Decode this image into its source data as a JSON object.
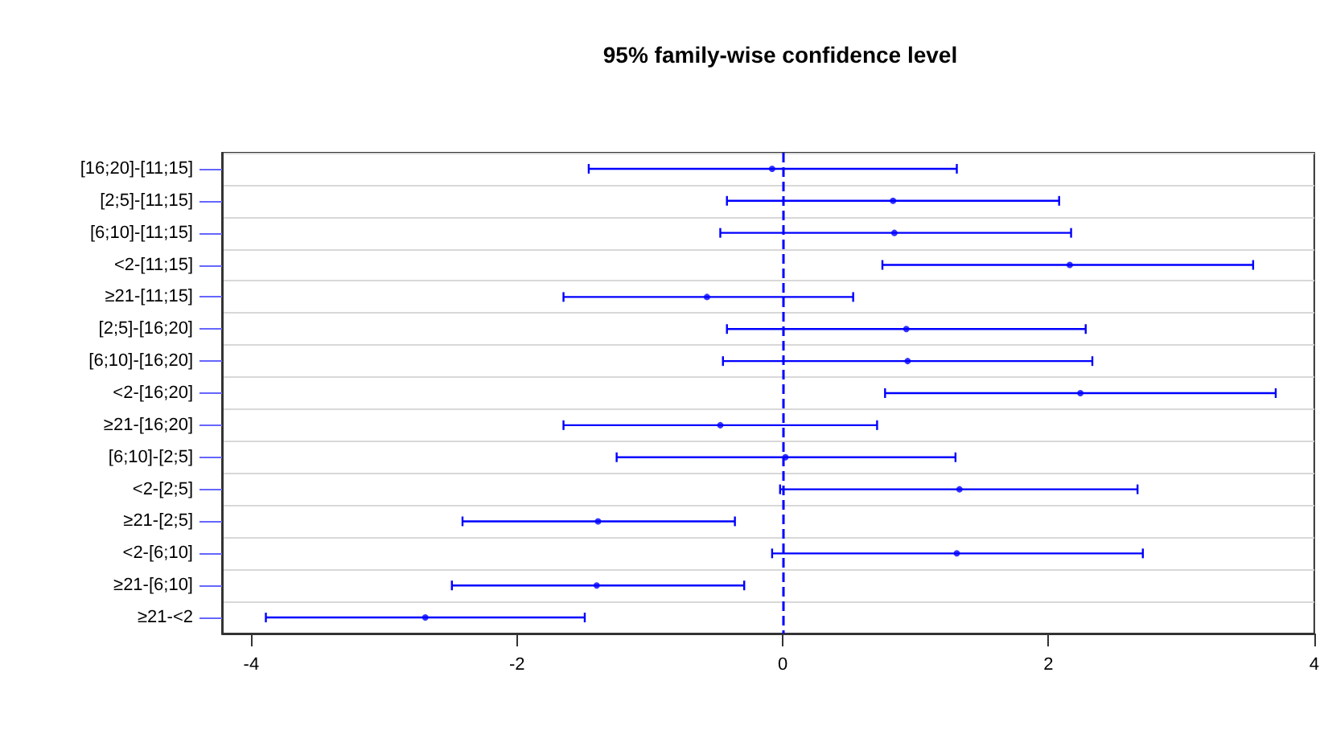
{
  "chart_data": {
    "type": "scatter",
    "title": "95% family-wise confidence level",
    "orientation": "horizontal",
    "categories": [
      "[16;20]-[11;15]",
      "[2;5]-[11;15]",
      "[6;10]-[11;15]",
      "<2-[11;15]",
      "≥21-[11;15]",
      "[2;5]-[16;20]",
      "[6;10]-[16;20]",
      "<2-[16;20]",
      "≥21-[16;20]",
      "[6;10]-[2;5]",
      "<2-[2;5]",
      "≥21-[2;5]",
      "<2-[6;10]",
      "≥21-[6;10]",
      "≥21-<2"
    ],
    "values": [
      -0.08,
      0.83,
      0.84,
      2.16,
      -0.57,
      0.93,
      0.94,
      2.24,
      -0.47,
      0.02,
      1.33,
      -1.39,
      1.31,
      -1.4,
      -2.69
    ],
    "errors": [
      [
        -1.46,
        1.31
      ],
      [
        -0.42,
        2.08
      ],
      [
        -0.47,
        2.17
      ],
      [
        0.75,
        3.54
      ],
      [
        -1.65,
        0.53
      ],
      [
        -0.42,
        2.28
      ],
      [
        -0.45,
        2.33
      ],
      [
        0.77,
        3.71
      ],
      [
        -1.65,
        0.71
      ],
      [
        -1.25,
        1.3
      ],
      [
        -0.02,
        2.67
      ],
      [
        -2.41,
        -0.36
      ],
      [
        -0.08,
        2.71
      ],
      [
        -2.49,
        -0.29
      ],
      [
        -3.89,
        -1.49
      ]
    ],
    "color": "#0000ff",
    "xlim": [
      -4.22,
      4.0
    ],
    "xticks": [
      -4,
      -2,
      0,
      2,
      4
    ],
    "grid": "y",
    "ref_lines": [
      {
        "axis": "x",
        "value": 0,
        "color": "#0000ff",
        "line_style": "dashed"
      }
    ]
  }
}
